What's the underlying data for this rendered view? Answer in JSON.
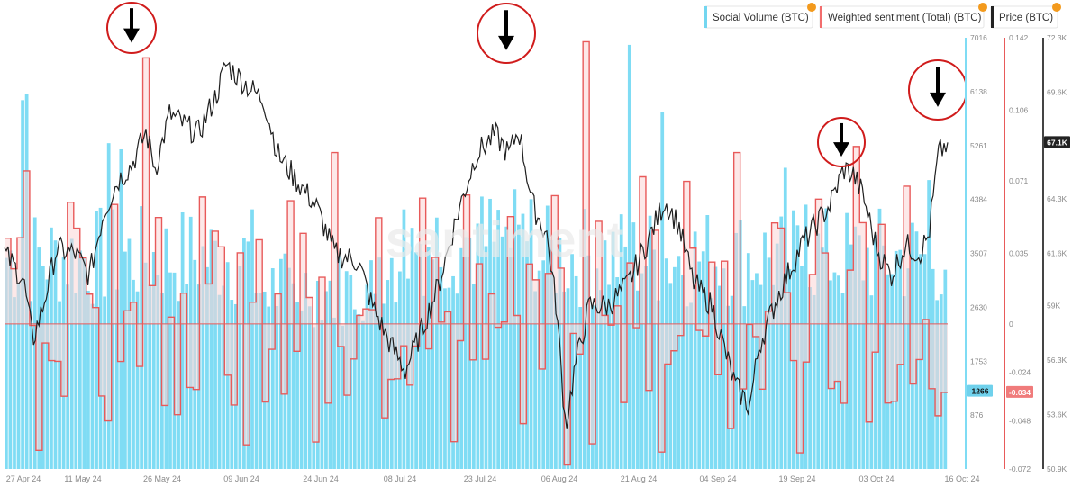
{
  "legend": [
    {
      "label": "Social Volume (BTC)",
      "color": "#73d6f0",
      "badge_icon": "bitcoin-icon"
    },
    {
      "label": "Weighted sentiment (Total) (BTC)",
      "color": "#f26d6d",
      "badge_icon": "bitcoin-icon"
    },
    {
      "label": "Price (BTC)",
      "color": "#222222",
      "badge_icon": "bitcoin-icon"
    }
  ],
  "colors": {
    "volume": "#7fdcf4",
    "sentiment": "#e85a5a",
    "sentiment_fill": "#fbd6d6",
    "price": "#1f1f1f",
    "annotation": "#d01c1c",
    "badge": "#f39a1d",
    "axis_text": "#8a8a8a"
  },
  "chart_data": {
    "type": "bar",
    "x_axis": {
      "labels": [
        "27 Apr 24",
        "11 May 24",
        "26 May 24",
        "09 Jun 24",
        "24 Jun 24",
        "08 Jul 24",
        "23 Jul 24",
        "06 Aug 24",
        "21 Aug 24",
        "04 Sep 24",
        "19 Sep 24",
        "03 Oct 24",
        "16 Oct 24"
      ]
    },
    "axes": {
      "volume": {
        "ticks": [
          "7016",
          "6138",
          "5261",
          "4384",
          "3507",
          "2630",
          "1753",
          "876"
        ],
        "ylim": [
          0,
          7016
        ],
        "current": "1266"
      },
      "sentiment": {
        "ticks": [
          "0.142",
          "0.106",
          "0.071",
          "0.035",
          "0",
          "-0.024",
          "-0.048",
          "-0.072"
        ],
        "ylim": [
          -0.072,
          0.142
        ],
        "current": "-0.034"
      },
      "price": {
        "ticks": [
          "72.3K",
          "69.6K",
          "67.1K",
          "64.3K",
          "61.6K",
          "59K",
          "56.3K",
          "53.6K",
          "50.9K"
        ],
        "ylim": [
          50.9,
          72.3
        ],
        "current": "67.1K"
      }
    },
    "price_keypoints": [
      [
        0,
        61.6
      ],
      [
        0.02,
        60.3
      ],
      [
        0.03,
        57.3
      ],
      [
        0.04,
        58.8
      ],
      [
        0.055,
        61.8
      ],
      [
        0.075,
        61.6
      ],
      [
        0.09,
        60.5
      ],
      [
        0.105,
        63.6
      ],
      [
        0.12,
        65.2
      ],
      [
        0.135,
        66.0
      ],
      [
        0.15,
        67.6
      ],
      [
        0.16,
        65.8
      ],
      [
        0.175,
        68.5
      ],
      [
        0.19,
        68.0
      ],
      [
        0.205,
        67.5
      ],
      [
        0.225,
        69.5
      ],
      [
        0.235,
        71.0
      ],
      [
        0.245,
        70.5
      ],
      [
        0.26,
        69.8
      ],
      [
        0.275,
        69.2
      ],
      [
        0.29,
        66.5
      ],
      [
        0.31,
        65.2
      ],
      [
        0.33,
        64.0
      ],
      [
        0.35,
        61.6
      ],
      [
        0.375,
        61.2
      ],
      [
        0.39,
        59.0
      ],
      [
        0.41,
        57.0
      ],
      [
        0.425,
        55.8
      ],
      [
        0.44,
        57.5
      ],
      [
        0.46,
        60.0
      ],
      [
        0.48,
        63.5
      ],
      [
        0.5,
        66.5
      ],
      [
        0.52,
        67.5
      ],
      [
        0.535,
        66.5
      ],
      [
        0.545,
        67.8
      ],
      [
        0.56,
        64.0
      ],
      [
        0.575,
        62.5
      ],
      [
        0.585,
        59.0
      ],
      [
        0.595,
        53.0
      ],
      [
        0.605,
        56.0
      ],
      [
        0.62,
        59.0
      ],
      [
        0.64,
        59.0
      ],
      [
        0.66,
        60.0
      ],
      [
        0.68,
        62.0
      ],
      [
        0.7,
        64.2
      ],
      [
        0.715,
        63.0
      ],
      [
        0.73,
        60.2
      ],
      [
        0.75,
        59.0
      ],
      [
        0.775,
        55.0
      ],
      [
        0.79,
        54.0
      ],
      [
        0.8,
        57.0
      ],
      [
        0.82,
        59.5
      ],
      [
        0.845,
        62.0
      ],
      [
        0.86,
        63.0
      ],
      [
        0.875,
        64.0
      ],
      [
        0.89,
        65.8
      ],
      [
        0.9,
        65.5
      ],
      [
        0.91,
        64.5
      ],
      [
        0.925,
        61.8
      ],
      [
        0.94,
        60.5
      ],
      [
        0.955,
        62.0
      ],
      [
        0.97,
        61.6
      ],
      [
        0.98,
        62.5
      ],
      [
        0.99,
        66.5
      ],
      [
        1.0,
        67.1
      ]
    ],
    "highlight_markers": [
      {
        "label": "peak 1",
        "position": 0.145
      },
      {
        "label": "peak 2",
        "position": 0.53
      },
      {
        "label": "peak 3",
        "position": 0.88
      },
      {
        "label": "peak 4",
        "position": 0.985
      }
    ],
    "watermark": "santiment"
  }
}
